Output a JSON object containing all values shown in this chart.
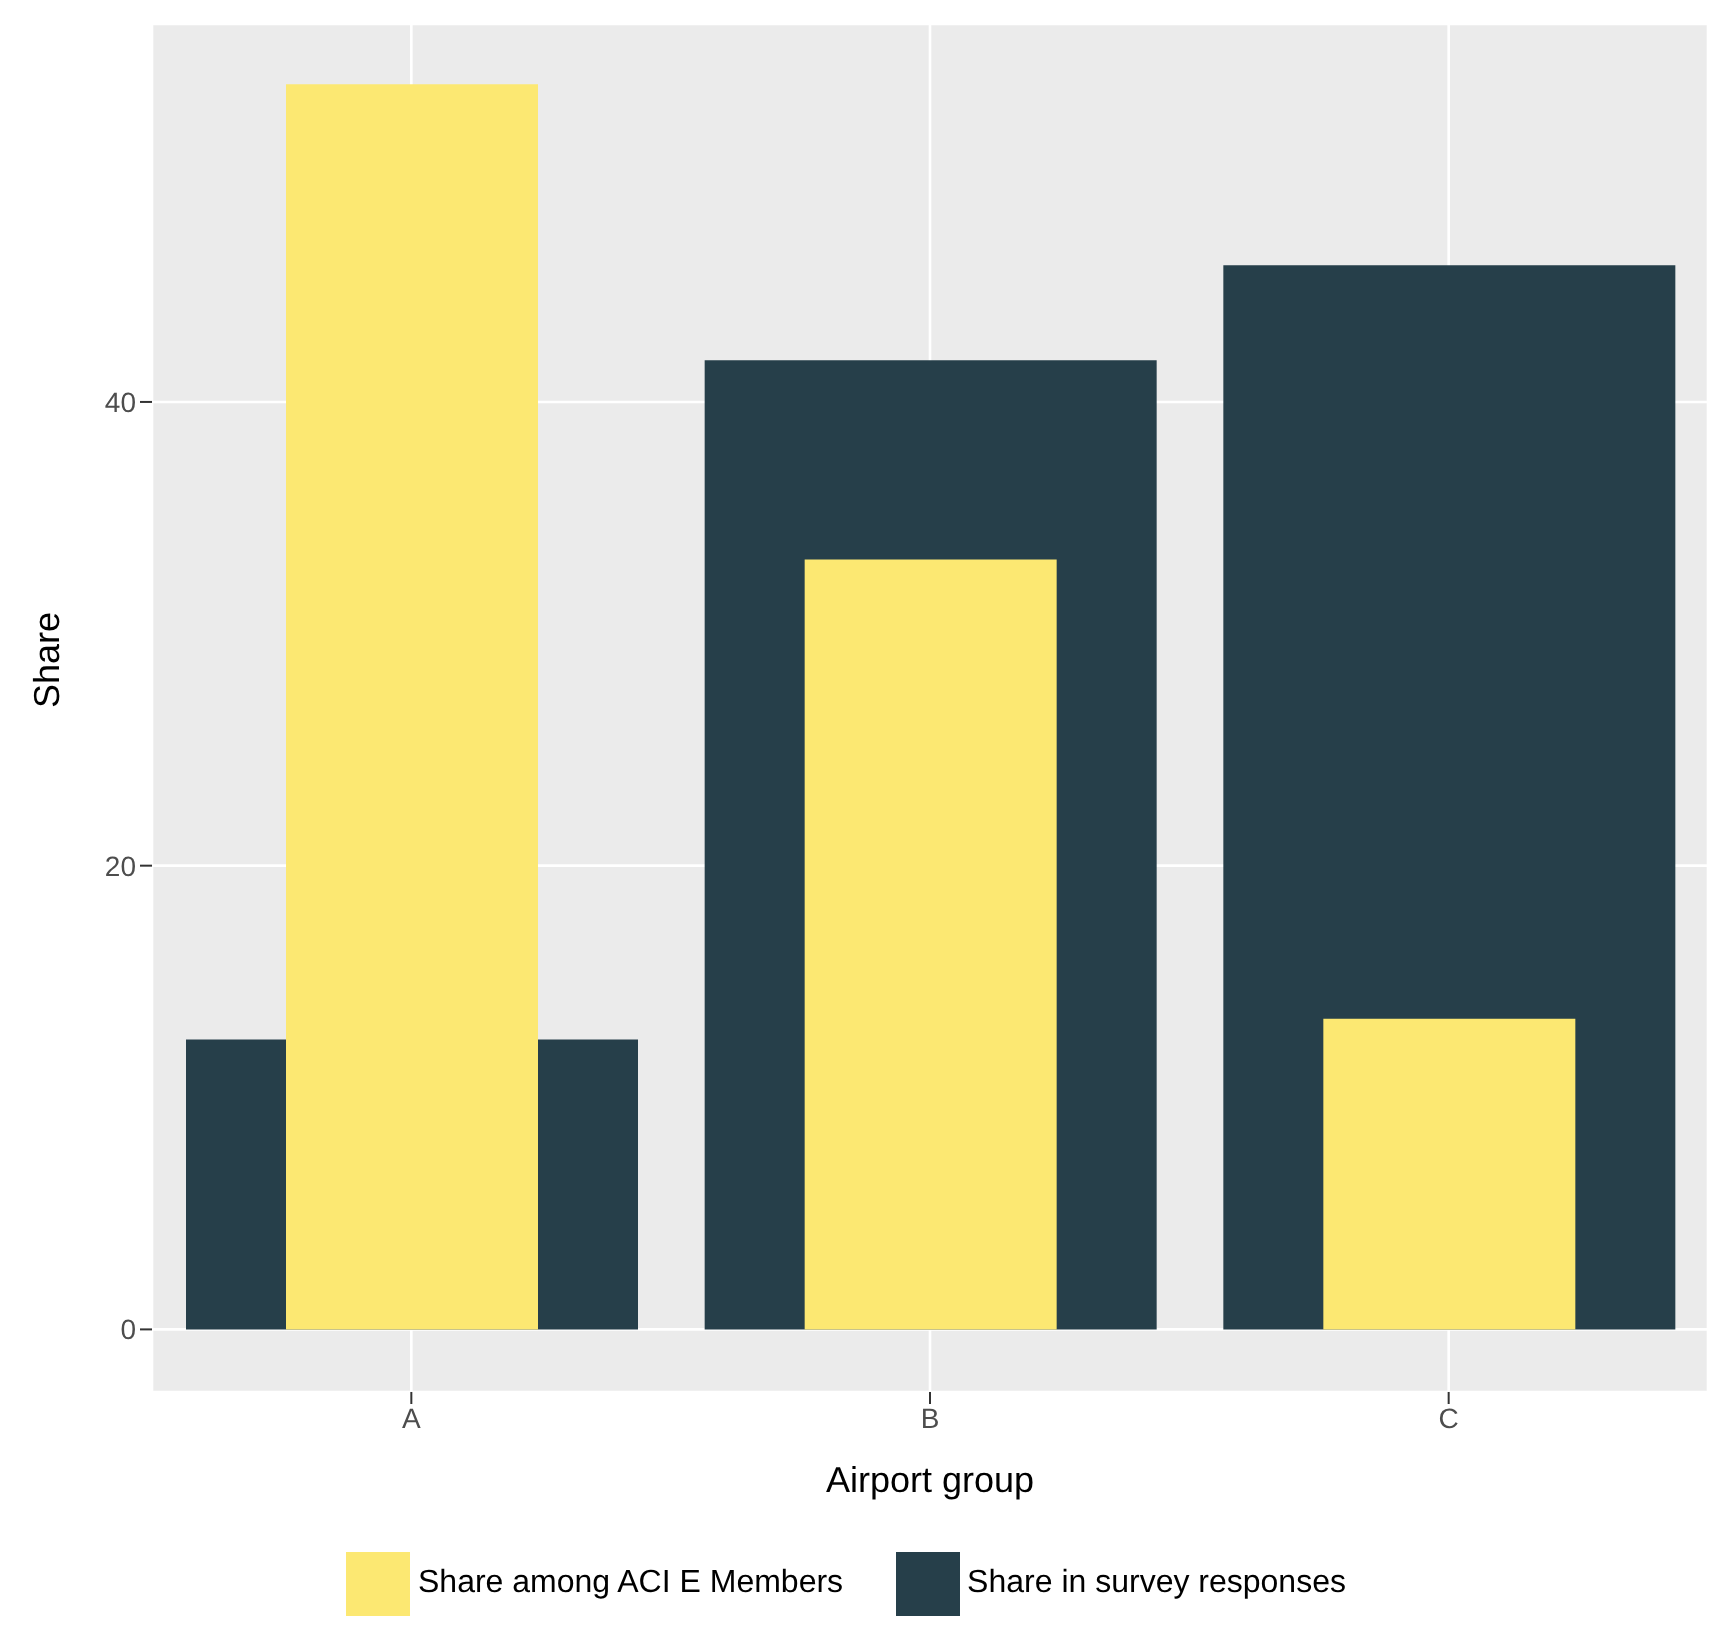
{
  "chart_data": {
    "type": "bar",
    "xlabel": "Airport group",
    "ylabel": "Share",
    "categories": [
      "A",
      "B",
      "C"
    ],
    "series": [
      {
        "name": "Share in survey responses",
        "color": "#263f4a",
        "values": [
          12.5,
          41.8,
          45.9
        ]
      },
      {
        "name": "Share among ACI E Members",
        "color": "#fce872",
        "values": [
          53.7,
          33.2,
          13.4
        ]
      }
    ],
    "ylim": [
      -2.7,
      56.3
    ],
    "yticks": [
      0,
      20,
      40
    ],
    "grid": true,
    "legend": "bottom"
  }
}
